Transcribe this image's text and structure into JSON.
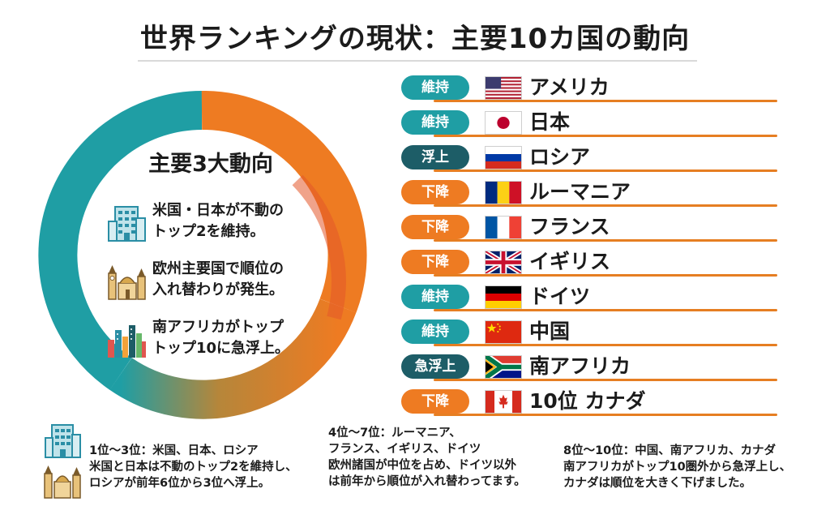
{
  "title": "世界ランキングの現状：主要10カ国の動向",
  "colors": {
    "teal": "#1f9ea4",
    "dark_teal": "#1d5d67",
    "orange": "#ee7b22",
    "line": "#e67e22"
  },
  "summary": {
    "title": "主要3大動向",
    "trends": [
      {
        "icon": "office-building-icon",
        "text": "米国・日本が不動の\nトップ2を維持。"
      },
      {
        "icon": "european-landmarks-icon",
        "text": "欧州主要国で順位の\n入れ替わりが発生。"
      },
      {
        "icon": "city-skyline-icon",
        "text": "南アフリカがトップ\nトップ10に急浮上。"
      }
    ]
  },
  "rankings": [
    {
      "badge": "維持",
      "status": "maintain",
      "flag_icon": "usa-flag-icon",
      "country": "アメリカ"
    },
    {
      "badge": "維持",
      "status": "maintain",
      "flag_icon": "japan-flag-icon",
      "country": "日本"
    },
    {
      "badge": "浮上",
      "status": "rise",
      "flag_icon": "russia-flag-icon",
      "country": "ロシア"
    },
    {
      "badge": "下降",
      "status": "fall",
      "flag_icon": "romania-flag-icon",
      "country": "ルーマニア"
    },
    {
      "badge": "下降",
      "status": "fall",
      "flag_icon": "france-flag-icon",
      "country": "フランス"
    },
    {
      "badge": "下降",
      "status": "fall",
      "flag_icon": "uk-flag-icon",
      "country": "イギリス"
    },
    {
      "badge": "維持",
      "status": "maintain",
      "flag_icon": "germany-flag-icon",
      "country": "ドイツ"
    },
    {
      "badge": "維持",
      "status": "maintain",
      "flag_icon": "china-flag-icon",
      "country": "中国"
    },
    {
      "badge": "急浮上",
      "status": "surge",
      "flag_icon": "south-africa-flag-icon",
      "country": "南アフリカ"
    },
    {
      "badge": "下降",
      "status": "fall",
      "flag_icon": "canada-flag-icon",
      "country": "10位 カナダ"
    }
  ],
  "notes": [
    {
      "text": "1位〜3位：米国、日本、ロシア\n米国と日本は不動のトップ2を維持し、\nロシアが前年6位から3位へ浮上。"
    },
    {
      "text": "4位〜7位：ルーマニア、\nフランス、イギリス、ドイツ\n欧州諸国が中位を占め、ドイツ以外\nは前年から順位が入れ替わってます。"
    },
    {
      "text": "8位〜10位：中国、南アフリカ、カナダ\n南アフリカがトップ10圏外から急浮上し、\nカナダは順位を大きく下げました。"
    }
  ]
}
